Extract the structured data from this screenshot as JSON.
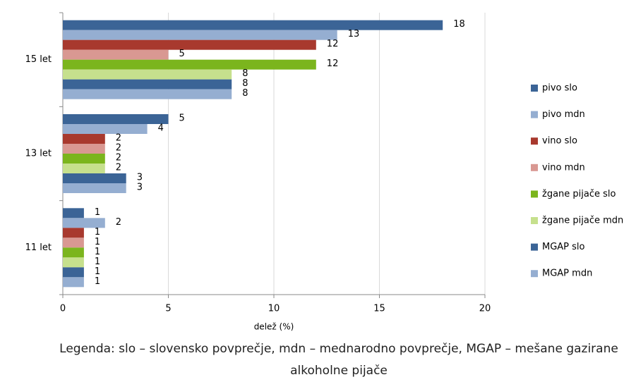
{
  "chart_data": {
    "type": "bar",
    "orientation": "horizontal",
    "categories": [
      "15 let",
      "13 let",
      "11 let"
    ],
    "series": [
      {
        "name": "pivo slo",
        "color": "#3b6496",
        "values": [
          18,
          5,
          1
        ]
      },
      {
        "name": "pivo mdn",
        "color": "#95aed1",
        "values": [
          13,
          4,
          2
        ]
      },
      {
        "name": "vino slo",
        "color": "#a8392e",
        "values": [
          12,
          2,
          1
        ]
      },
      {
        "name": "vino mdn",
        "color": "#d99892",
        "values": [
          5,
          2,
          1
        ]
      },
      {
        "name": "žgane pijače slo",
        "color": "#7bb51d",
        "values": [
          12,
          2,
          1
        ]
      },
      {
        "name": "žgane pijače mdn",
        "color": "#c6e08d",
        "values": [
          8,
          2,
          1
        ]
      },
      {
        "name": "MGAP slo",
        "color": "#3b6496",
        "values": [
          8,
          3,
          1
        ]
      },
      {
        "name": "MGAP mdn",
        "color": "#95aed1",
        "values": [
          8,
          3,
          1
        ]
      }
    ],
    "xlim": [
      0,
      20
    ],
    "xticks": [
      0,
      5,
      10,
      15,
      20
    ],
    "grid": true,
    "xlabel": "delež (%)",
    "legend": "right",
    "caption": "Legenda: slo – slovensko povprečje, mdn – mednarodno povprečje, MGAP – mešane gazirane alkoholne pijače"
  }
}
